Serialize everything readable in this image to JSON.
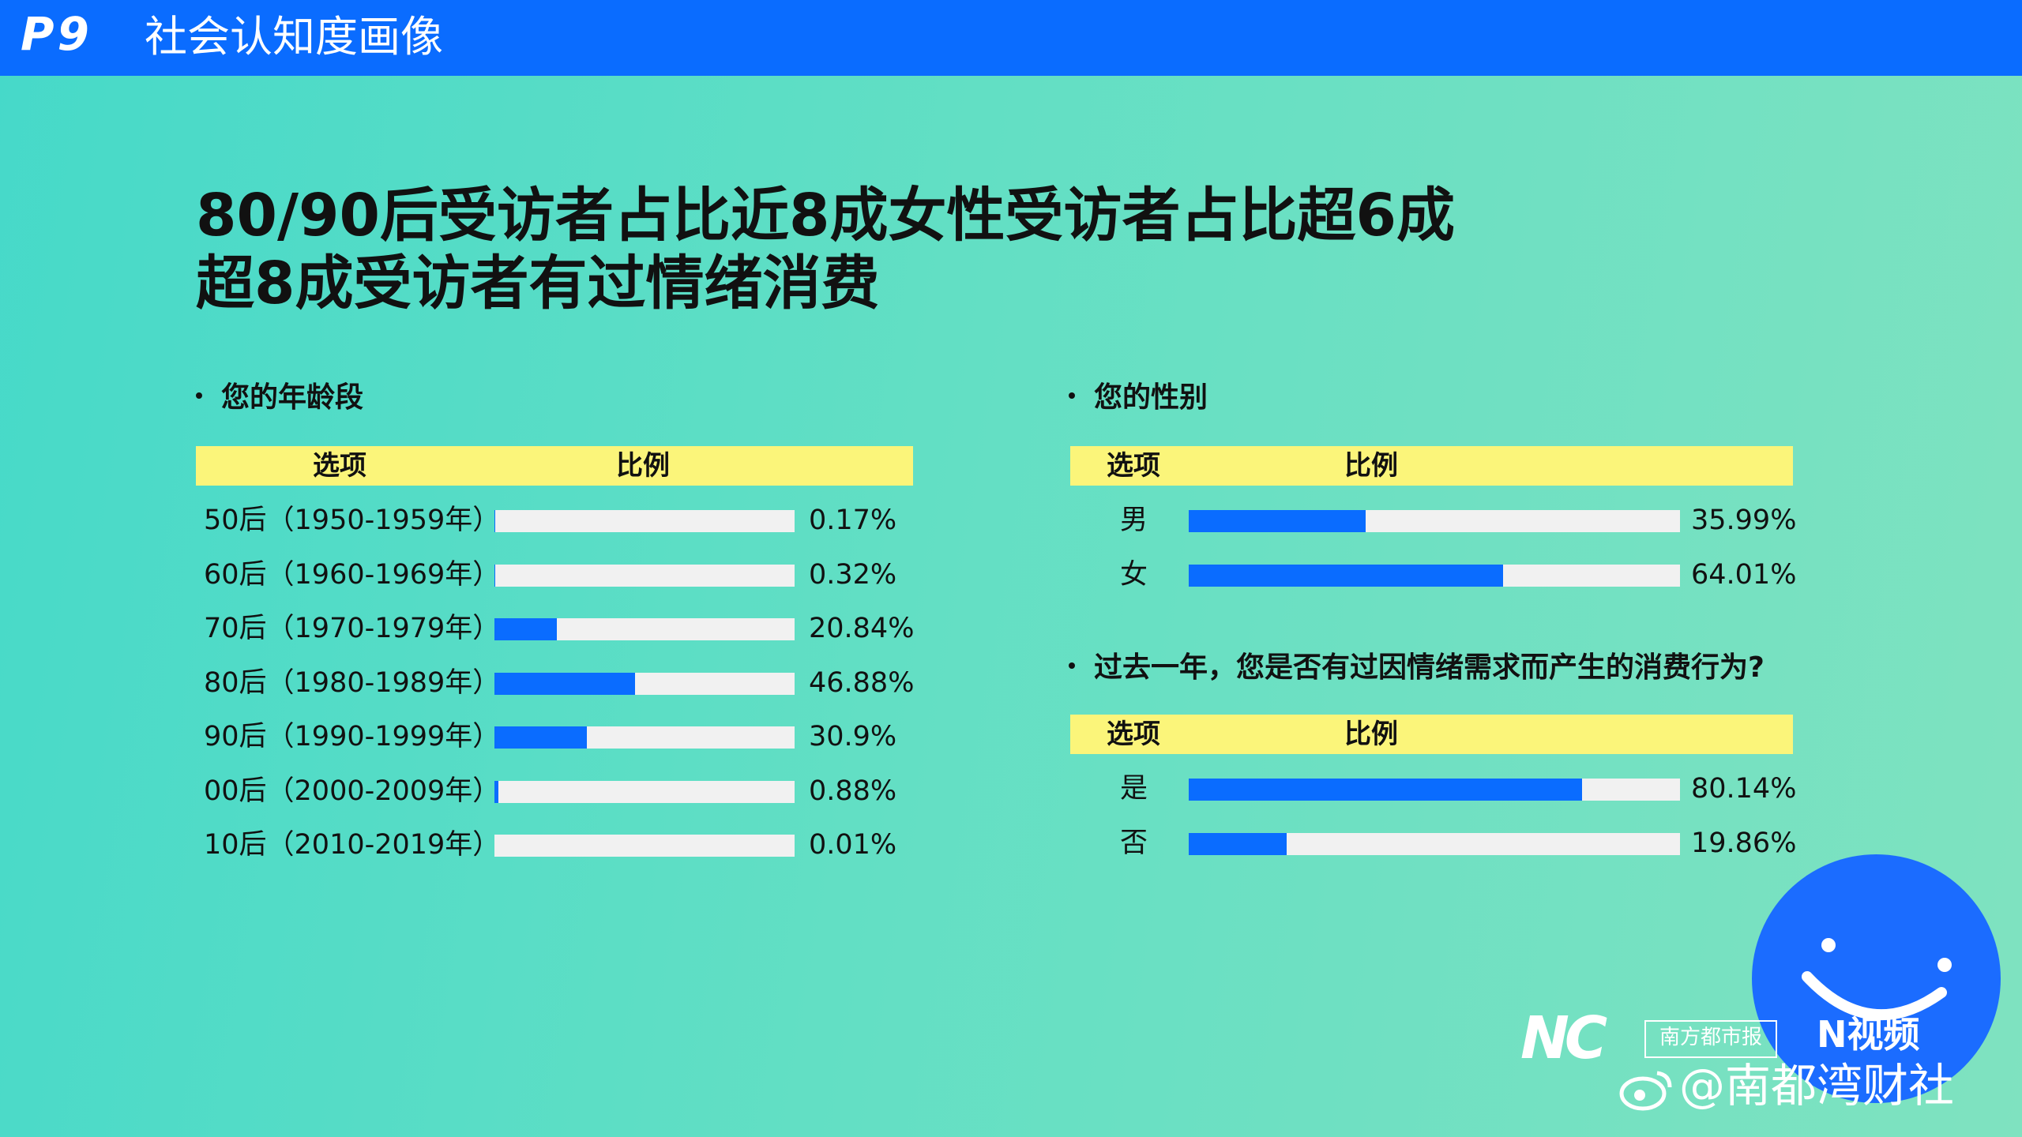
{
  "header": {
    "page_no": "P9",
    "section_title": "社会认知度画像"
  },
  "headline": {
    "line1": "80/90后受访者占比近8成女性受访者占比超6成",
    "line2": "超8成受访者有过情绪消费"
  },
  "table_header": {
    "option": "选项",
    "ratio": "比例"
  },
  "chart_data": [
    {
      "type": "bar",
      "title": "您的年龄段",
      "categories": [
        "50后（1950-1959年）",
        "60后（1960-1969年）",
        "70后（1970-1979年）",
        "80后（1980-1989年）",
        "90后（1990-1999年）",
        "00后（2000-2009年）",
        "10后（2010-2019年）"
      ],
      "values": [
        0.17,
        0.32,
        20.84,
        46.88,
        30.9,
        0.88,
        0.01
      ],
      "labels": [
        "0.17%",
        "0.32%",
        "20.84%",
        "46.88%",
        "30.9%",
        "0.88%",
        "0.01%"
      ],
      "ylim": [
        0,
        100
      ],
      "orientation": "horizontal"
    },
    {
      "type": "bar",
      "title": "您的性别",
      "categories": [
        "男",
        "女"
      ],
      "values": [
        35.99,
        64.01
      ],
      "labels": [
        "35.99%",
        "64.01%"
      ],
      "ylim": [
        0,
        100
      ],
      "orientation": "horizontal"
    },
    {
      "type": "bar",
      "title": "过去一年，您是否有过因情绪需求而产生的消费行为?",
      "categories": [
        "是",
        "否"
      ],
      "values": [
        80.14,
        19.86
      ],
      "labels": [
        "80.14%",
        "19.86%"
      ],
      "ylim": [
        0,
        100
      ],
      "orientation": "horizontal"
    }
  ],
  "colors": {
    "bar_fill": "#0a6cff",
    "bar_track": "#f1f1f1",
    "header_bg": "#fbf57a",
    "top_bar": "#0a6cff"
  },
  "footer": {
    "nd_logo": "NC",
    "newspaper": "南方都市报",
    "video_brand": "N视频",
    "weibo": "@南都湾财社"
  }
}
